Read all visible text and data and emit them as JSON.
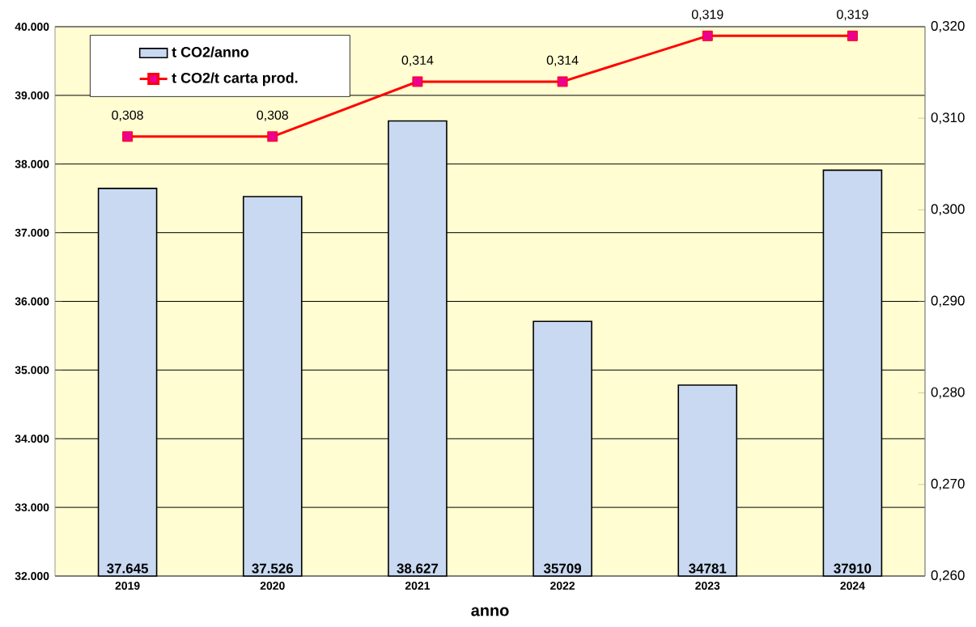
{
  "chart_data": {
    "type": "bar",
    "xlabel": "anno",
    "categories": [
      "2019",
      "2020",
      "2021",
      "2022",
      "2023",
      "2024"
    ],
    "series": [
      {
        "name": "t CO2/anno",
        "color": "#c9d9f2",
        "values": [
          37645,
          37526,
          38627,
          35709,
          34781,
          37910
        ],
        "value_labels": [
          "37.645",
          "37.526",
          "38.627",
          "35709",
          "34781",
          "37910"
        ]
      },
      {
        "name": "t CO2/t carta prod.",
        "type": "line",
        "axis": "y2",
        "color": "#ff0000",
        "marker": "square",
        "values": [
          0.308,
          0.308,
          0.314,
          0.314,
          0.319,
          0.319
        ],
        "value_labels": [
          "0,308",
          "0,308",
          "0,314",
          "0,314",
          "0,319",
          "0,319"
        ]
      }
    ],
    "ylim": [
      32000,
      40000
    ],
    "yticks": [
      {
        "value": 32000,
        "label": "32.000"
      },
      {
        "value": 33000,
        "label": "33.000"
      },
      {
        "value": 34000,
        "label": "34.000"
      },
      {
        "value": 35000,
        "label": "35.000"
      },
      {
        "value": 36000,
        "label": "36.000"
      },
      {
        "value": 37000,
        "label": "37.000"
      },
      {
        "value": 38000,
        "label": "38.000"
      },
      {
        "value": 39000,
        "label": "39.000"
      },
      {
        "value": 40000,
        "label": "40.000"
      }
    ],
    "y2lim": [
      0.26,
      0.32
    ],
    "y2ticks": [
      {
        "value": 0.26,
        "label": "0,260"
      },
      {
        "value": 0.27,
        "label": "0,270"
      },
      {
        "value": 0.28,
        "label": "0,280"
      },
      {
        "value": 0.29,
        "label": "0,290"
      },
      {
        "value": 0.3,
        "label": "0,300"
      },
      {
        "value": 0.31,
        "label": "0,310"
      },
      {
        "value": 0.32,
        "label": "0,320"
      }
    ],
    "grid": "y",
    "legend": "top left"
  }
}
